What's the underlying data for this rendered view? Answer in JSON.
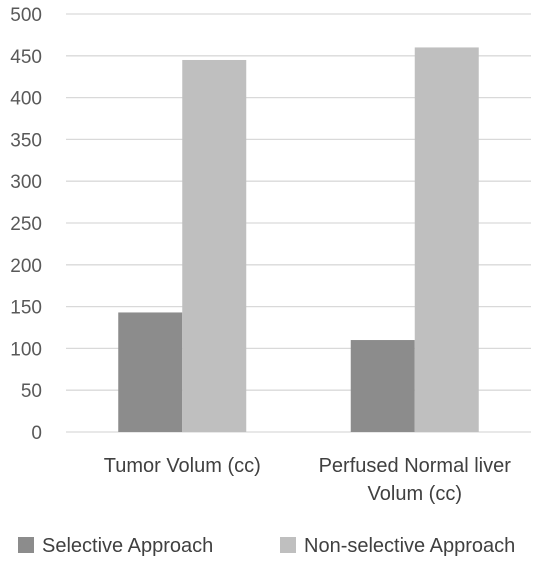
{
  "chart_data": {
    "type": "bar",
    "categories": [
      [
        "Tumor Volum (cc)"
      ],
      [
        "Perfused Normal liver",
        "Volum (cc)"
      ]
    ],
    "series": [
      {
        "name": "Selective Approach",
        "values": [
          143,
          110
        ],
        "color": "#8c8c8c"
      },
      {
        "name": "Non-selective Approach",
        "values": [
          445,
          460
        ],
        "color": "#bfbfbf"
      }
    ],
    "ylim": [
      0,
      500
    ],
    "yticks": [
      0,
      50,
      100,
      150,
      200,
      250,
      300,
      350,
      400,
      450,
      500
    ],
    "grid": true,
    "legend": "bottom",
    "gridColor": "#d9d9d9"
  }
}
